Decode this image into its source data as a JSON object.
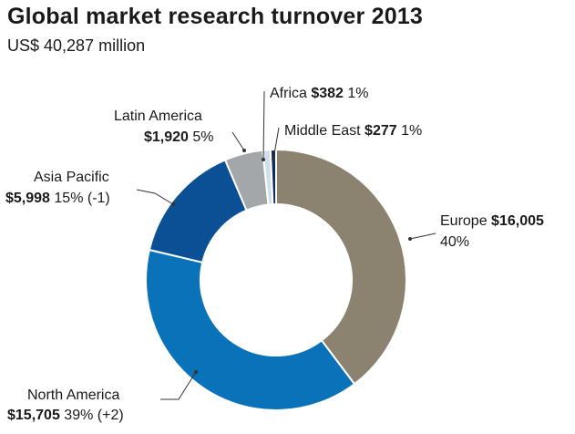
{
  "title": "Global market research turnover 2013",
  "subtitle": "US$ 40,287 million",
  "chart_data": {
    "type": "pie",
    "title": "Global market research turnover 2013",
    "subtitle": "US$ 40,287 million",
    "slices": [
      {
        "name": "Europe",
        "value": 16005,
        "value_label": "$16,005",
        "pct_label": "40%",
        "change": "",
        "color": "#8c8270"
      },
      {
        "name": "North America",
        "value": 15705,
        "value_label": "$15,705",
        "pct_label": "39%",
        "change": "(+2)",
        "color": "#0a72b9"
      },
      {
        "name": "Asia Pacific",
        "value": 5998,
        "value_label": "$5,998",
        "pct_label": "15%",
        "change": "(-1)",
        "color": "#0b4f94"
      },
      {
        "name": "Latin America",
        "value": 1920,
        "value_label": "$1,920",
        "pct_label": "5%",
        "change": "",
        "color": "#a4a7a9"
      },
      {
        "name": "Africa",
        "value": 382,
        "value_label": "$382",
        "pct_label": "1%",
        "change": "",
        "color": "#cfe0ea"
      },
      {
        "name": "Middle East",
        "value": 277,
        "value_label": "$277",
        "pct_label": "1%",
        "change": "",
        "color": "#0d2a5c"
      }
    ]
  }
}
